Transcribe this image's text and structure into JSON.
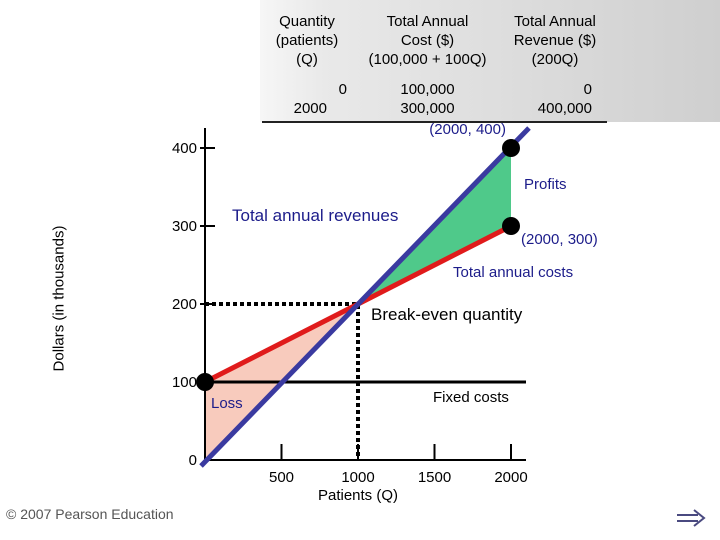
{
  "table": {
    "headers": [
      [
        "Quantity",
        "(patients)",
        "(Q)"
      ],
      [
        "Total Annual",
        "Cost ($)",
        "(100,000 + 100Q)"
      ],
      [
        "Total Annual",
        "Revenue ($)",
        "(200Q)"
      ]
    ],
    "rows": [
      [
        "0",
        "100,000",
        "0"
      ],
      [
        "2000",
        "300,000",
        "400,000"
      ]
    ]
  },
  "chart_data": {
    "type": "line",
    "xlabel": "Patients (Q)",
    "ylabel": "Dollars (in thousands)",
    "xlim": [
      0,
      2000
    ],
    "ylim": [
      0,
      400
    ],
    "x_ticks": [
      "500",
      "1000",
      "1500",
      "2000"
    ],
    "y_ticks": [
      "0",
      "100",
      "200",
      "300",
      "400"
    ],
    "series": [
      {
        "name": "Total annual revenues",
        "color": "#3a3aa0",
        "x": [
          0,
          2000
        ],
        "y": [
          0,
          400
        ]
      },
      {
        "name": "Total annual costs",
        "color": "#e01b1b",
        "x": [
          0,
          2000
        ],
        "y": [
          100,
          300
        ]
      },
      {
        "name": "Fixed costs",
        "color": "#000000",
        "x": [
          0,
          2000
        ],
        "y": [
          100,
          100
        ]
      }
    ],
    "regions": {
      "profit_color": "#4fc98a",
      "loss_color": "#f8cbbd"
    },
    "points": [
      {
        "label": "(2000, 400)",
        "x": 2000,
        "y": 400
      },
      {
        "label": "(2000, 300)",
        "x": 2000,
        "y": 300
      },
      {
        "label": "",
        "x": 0,
        "y": 100
      }
    ],
    "break_even": {
      "x": 1000,
      "y": 200
    },
    "annotations": {
      "profits": "Profits",
      "loss": "Loss",
      "revenues": "Total annual revenues",
      "costs": "Total annual costs",
      "fixed": "Fixed costs",
      "break_even": "Break-even quantity"
    }
  },
  "footer": {
    "copyright": "© 2007 Pearson Education",
    "next_icon": "right-arrow-icon"
  }
}
